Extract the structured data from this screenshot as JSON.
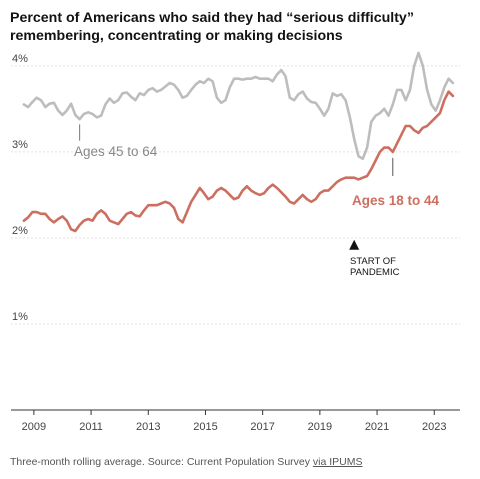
{
  "title": "Percent of Americans who said they had “serious difficulty” remembering, concentrating or making decisions",
  "footer": {
    "note": "Three-month rolling average. Source: Current Population Survey ",
    "link_text": "via IPUMS"
  },
  "colors": {
    "ages_45_64": "#bdbdbd",
    "ages_18_44": "#cd6f60",
    "label_45_64": "#888888",
    "grid": "#e2e2e2",
    "annotation": "#121212"
  },
  "chart_data": {
    "type": "line",
    "title": "Percent of Americans who said they had “serious difficulty” remembering, concentrating or making decisions",
    "xlabel": "",
    "ylabel": "",
    "xlim": [
      2008.2,
      2023.9
    ],
    "ylim": [
      0,
      4.3
    ],
    "y_ticks": [
      1,
      2,
      3,
      4
    ],
    "y_tick_labels": [
      "1%",
      "2%",
      "3%",
      "4%"
    ],
    "x_ticks": [
      2009,
      2011,
      2013,
      2015,
      2017,
      2019,
      2021,
      2023
    ],
    "x_tick_labels": [
      "2009",
      "2011",
      "2013",
      "2015",
      "2017",
      "2019",
      "2021",
      "2023"
    ],
    "grid": true,
    "legend": "inline labels",
    "series": [
      {
        "name": "Ages 45 to 64",
        "color": "#bdbdbd",
        "label_x": 2010.6,
        "label_y": 3.07,
        "x": [
          2008.65,
          2008.8,
          2008.95,
          2009.1,
          2009.25,
          2009.4,
          2009.55,
          2009.7,
          2009.85,
          2010.0,
          2010.15,
          2010.3,
          2010.45,
          2010.6,
          2010.75,
          2010.9,
          2011.05,
          2011.2,
          2011.35,
          2011.5,
          2011.65,
          2011.8,
          2011.95,
          2012.1,
          2012.25,
          2012.4,
          2012.55,
          2012.7,
          2012.85,
          2013.0,
          2013.15,
          2013.3,
          2013.45,
          2013.6,
          2013.75,
          2013.9,
          2014.05,
          2014.2,
          2014.35,
          2014.5,
          2014.65,
          2014.8,
          2014.95,
          2015.1,
          2015.25,
          2015.4,
          2015.55,
          2015.7,
          2015.85,
          2016.0,
          2016.15,
          2016.3,
          2016.45,
          2016.6,
          2016.75,
          2016.9,
          2017.05,
          2017.2,
          2017.35,
          2017.5,
          2017.65,
          2017.8,
          2017.95,
          2018.1,
          2018.25,
          2018.4,
          2018.55,
          2018.7,
          2018.85,
          2019.0,
          2019.15,
          2019.3,
          2019.45,
          2019.6,
          2019.75,
          2019.9,
          2020.05,
          2020.2,
          2020.35,
          2020.5,
          2020.65,
          2020.8,
          2020.95,
          2021.1,
          2021.25,
          2021.4,
          2021.55,
          2021.7,
          2021.85,
          2022.0,
          2022.15,
          2022.3,
          2022.45,
          2022.6,
          2022.75,
          2022.9,
          2023.05,
          2023.2,
          2023.35,
          2023.5,
          2023.65
        ],
        "y": [
          3.55,
          3.52,
          3.58,
          3.63,
          3.6,
          3.52,
          3.56,
          3.57,
          3.48,
          3.43,
          3.48,
          3.56,
          3.43,
          3.38,
          3.44,
          3.46,
          3.44,
          3.4,
          3.42,
          3.55,
          3.62,
          3.57,
          3.6,
          3.68,
          3.69,
          3.64,
          3.6,
          3.68,
          3.66,
          3.72,
          3.74,
          3.7,
          3.72,
          3.76,
          3.8,
          3.78,
          3.72,
          3.63,
          3.65,
          3.72,
          3.78,
          3.82,
          3.8,
          3.85,
          3.82,
          3.63,
          3.57,
          3.6,
          3.75,
          3.85,
          3.85,
          3.84,
          3.85,
          3.85,
          3.87,
          3.85,
          3.85,
          3.85,
          3.82,
          3.9,
          3.95,
          3.88,
          3.63,
          3.6,
          3.67,
          3.7,
          3.62,
          3.58,
          3.57,
          3.5,
          3.42,
          3.5,
          3.68,
          3.65,
          3.67,
          3.6,
          3.4,
          3.15,
          2.95,
          2.92,
          3.05,
          3.35,
          3.42,
          3.45,
          3.5,
          3.42,
          3.55,
          3.72,
          3.72,
          3.6,
          3.72,
          4.0,
          4.15,
          4.0,
          3.72,
          3.55,
          3.48,
          3.6,
          3.75,
          3.85,
          3.8
        ]
      },
      {
        "name": "Ages 18 to 44",
        "color": "#cd6f60",
        "label_x": 2020.7,
        "label_y": 2.43,
        "x": [
          2008.65,
          2008.8,
          2008.95,
          2009.1,
          2009.25,
          2009.4,
          2009.55,
          2009.7,
          2009.85,
          2010.0,
          2010.15,
          2010.3,
          2010.45,
          2010.6,
          2010.75,
          2010.9,
          2011.05,
          2011.2,
          2011.35,
          2011.5,
          2011.65,
          2011.8,
          2011.95,
          2012.1,
          2012.25,
          2012.4,
          2012.55,
          2012.7,
          2012.85,
          2013.0,
          2013.15,
          2013.3,
          2013.45,
          2013.6,
          2013.75,
          2013.9,
          2014.05,
          2014.2,
          2014.35,
          2014.5,
          2014.65,
          2014.8,
          2014.95,
          2015.1,
          2015.25,
          2015.4,
          2015.55,
          2015.7,
          2015.85,
          2016.0,
          2016.15,
          2016.3,
          2016.45,
          2016.6,
          2016.75,
          2016.9,
          2017.05,
          2017.2,
          2017.35,
          2017.5,
          2017.65,
          2017.8,
          2017.95,
          2018.1,
          2018.25,
          2018.4,
          2018.55,
          2018.7,
          2018.85,
          2019.0,
          2019.15,
          2019.3,
          2019.45,
          2019.6,
          2019.75,
          2019.9,
          2020.05,
          2020.2,
          2020.35,
          2020.5,
          2020.65,
          2020.8,
          2020.95,
          2021.1,
          2021.25,
          2021.4,
          2021.55,
          2021.7,
          2021.85,
          2022.0,
          2022.15,
          2022.3,
          2022.45,
          2022.6,
          2022.75,
          2022.9,
          2023.05,
          2023.2,
          2023.35,
          2023.5,
          2023.65
        ],
        "y": [
          2.2,
          2.24,
          2.3,
          2.3,
          2.28,
          2.28,
          2.22,
          2.18,
          2.22,
          2.25,
          2.2,
          2.1,
          2.08,
          2.15,
          2.2,
          2.22,
          2.2,
          2.28,
          2.32,
          2.28,
          2.2,
          2.18,
          2.16,
          2.22,
          2.28,
          2.3,
          2.26,
          2.25,
          2.32,
          2.38,
          2.38,
          2.38,
          2.4,
          2.42,
          2.4,
          2.35,
          2.22,
          2.18,
          2.3,
          2.42,
          2.5,
          2.58,
          2.52,
          2.45,
          2.48,
          2.55,
          2.58,
          2.55,
          2.5,
          2.45,
          2.47,
          2.55,
          2.6,
          2.55,
          2.52,
          2.5,
          2.52,
          2.58,
          2.62,
          2.58,
          2.53,
          2.48,
          2.42,
          2.4,
          2.45,
          2.5,
          2.45,
          2.42,
          2.45,
          2.52,
          2.55,
          2.55,
          2.6,
          2.65,
          2.68,
          2.7,
          2.7,
          2.7,
          2.68,
          2.7,
          2.72,
          2.8,
          2.9,
          3.0,
          3.05,
          3.05,
          3.0,
          3.1,
          3.2,
          3.3,
          3.3,
          3.25,
          3.22,
          3.28,
          3.3,
          3.35,
          3.4,
          3.45,
          3.6,
          3.7,
          3.65
        ]
      }
    ],
    "annotations": [
      {
        "text": "START OF PANDEMIC",
        "lines": [
          "START OF",
          "PANDEMIC"
        ],
        "x": 2020.2,
        "y": 1.92
      }
    ]
  }
}
